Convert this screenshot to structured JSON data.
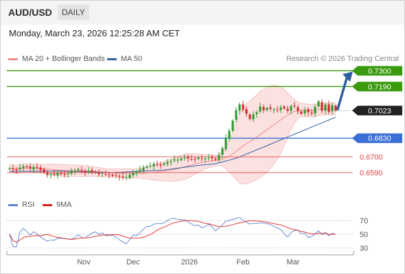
{
  "header": {
    "symbol": "AUD/USD",
    "period": "DAILY",
    "datetime": "Monday, March 23, 2026 12:25:28 AM CET",
    "credit": "Research © 2026 Trading Central"
  },
  "legend": [
    {
      "label": "MA 20 + Bollinger Bands",
      "color": "#f08a8a"
    },
    {
      "label": "MA 50",
      "color": "#2f5f9e"
    }
  ],
  "rsi_legend": [
    {
      "label": "RSI",
      "color": "#5b82cf"
    },
    {
      "label": "9MA",
      "color": "#e02020"
    }
  ],
  "chart_data": [
    {
      "type": "candlestick",
      "title": "",
      "ylim": [
        0.648,
        0.7335
      ],
      "current_price": 0.7023,
      "x_ticks": [
        "Nov",
        "Dec",
        "2026",
        "Feb",
        "Mar"
      ],
      "levels": [
        {
          "value": 0.73,
          "label": "0.7300",
          "color": "#3a9a0e",
          "kind": "resistance"
        },
        {
          "value": 0.719,
          "label": "0.7190",
          "color": "#3a9a0e",
          "kind": "resistance"
        },
        {
          "value": 0.7023,
          "label": "0.7023",
          "color": "#333333",
          "kind": "last"
        },
        {
          "value": 0.683,
          "label": "0.6830",
          "color": "#3a6fd8",
          "kind": "pivot"
        },
        {
          "value": 0.67,
          "label": "0.6700",
          "color": "#e34545",
          "kind": "support"
        },
        {
          "value": 0.659,
          "label": "0.6590",
          "color": "#e34545",
          "kind": "support"
        }
      ],
      "closes": [
        0.6621,
        0.6612,
        0.6607,
        0.6625,
        0.6634,
        0.6628,
        0.6618,
        0.6631,
        0.6622,
        0.6608,
        0.6592,
        0.6574,
        0.6581,
        0.6577,
        0.6589,
        0.658,
        0.6575,
        0.6588,
        0.6596,
        0.6602,
        0.6615,
        0.6605,
        0.6592,
        0.6602,
        0.66,
        0.659,
        0.6579,
        0.6587,
        0.658,
        0.6573,
        0.6567,
        0.6571,
        0.6562,
        0.6554,
        0.6559,
        0.6574,
        0.6587,
        0.6594,
        0.661,
        0.6625,
        0.6634,
        0.664,
        0.665,
        0.6645,
        0.6639,
        0.6655,
        0.6663,
        0.667,
        0.6683,
        0.6679,
        0.6688,
        0.6694,
        0.6689,
        0.6684,
        0.6681,
        0.6695,
        0.6688,
        0.6687,
        0.6693,
        0.6691,
        0.668,
        0.6711,
        0.676,
        0.6832,
        0.688,
        0.6952,
        0.7025,
        0.7065,
        0.7028,
        0.7001,
        0.6964,
        0.6996,
        0.701,
        0.7051,
        0.7026,
        0.7041,
        0.7035,
        0.7031,
        0.7025,
        0.7044,
        0.7038,
        0.7022,
        0.7053,
        0.7051,
        0.7018,
        0.7001,
        0.7025,
        0.7012,
        0.7001,
        0.7048,
        0.7086,
        0.7023,
        0.7064,
        0.7012,
        0.706,
        0.7023
      ],
      "ma50_anchors": [
        [
          0,
          0.6598
        ],
        [
          15,
          0.6601
        ],
        [
          30,
          0.659
        ],
        [
          45,
          0.6608
        ],
        [
          55,
          0.664
        ],
        [
          60,
          0.6652
        ],
        [
          66,
          0.669
        ],
        [
          75,
          0.6778
        ],
        [
          85,
          0.6878
        ],
        [
          95,
          0.6976
        ]
      ],
      "projection": {
        "from": 0.7023,
        "to": 0.73
      }
    },
    {
      "type": "line",
      "title": "RSI",
      "ylim": [
        26,
        80
      ],
      "y_ticks": [
        30,
        50,
        70
      ],
      "series": [
        {
          "name": "RSI",
          "color": "#5b82cf"
        },
        {
          "name": "9MA",
          "color": "#e02020"
        }
      ]
    }
  ]
}
